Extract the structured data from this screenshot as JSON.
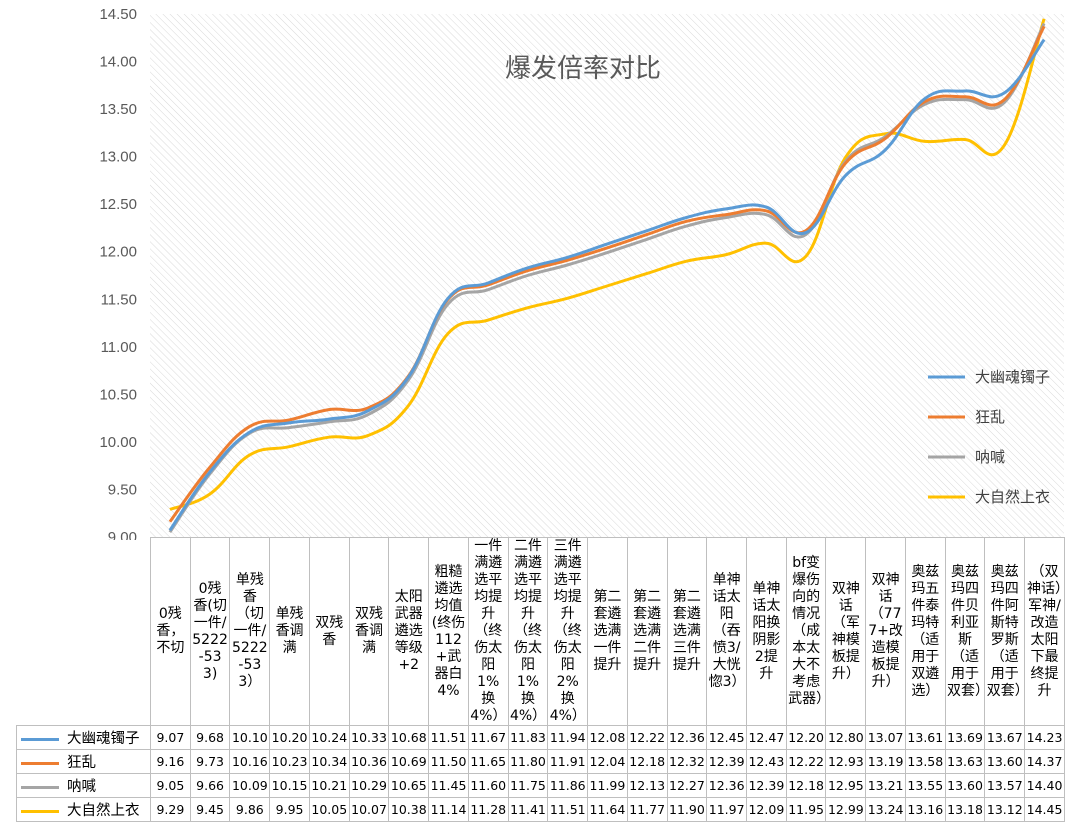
{
  "chart_data": {
    "type": "line",
    "title": "爆发倍率对比",
    "y_ticks": [
      "9.00",
      "9.50",
      "10.00",
      "10.50",
      "11.00",
      "11.50",
      "12.00",
      "12.50",
      "13.00",
      "13.50",
      "14.00",
      "14.50"
    ],
    "ylim": [
      9.0,
      14.5
    ],
    "grid": false,
    "legend_placement": "right",
    "categories": [
      "0残香，不切",
      "0残香(切一件/5222-533)",
      "单残香（切一件/5222-533）",
      "单残香调满",
      "双残香",
      "双残香调满",
      "太阳武器遴选等级+2",
      "粗糙遴选均值(终伤112+武器白4%",
      "一件满遴选平均提升（终伤太阳1%换4%）",
      "二件满遴选平均提升（终伤太阳1%换4%）",
      "三件满遴选平均提升（终伤太阳2%换4%）",
      "第二套遴选满一件提升",
      "第二套遴选满二件提升",
      "第二套遴选满三件提升",
      "单神话太阳（吞愤3/大恍惚3）",
      "单神话太阳换阴影2提升",
      "bf变爆伤向的情况（成本太大不考虑武器）",
      "双神话（军神模板提升）",
      "双神话（777+改造模板提升）",
      "奥兹玛五件泰玛特（适用于双遴选）",
      "奥兹玛四件贝利亚斯（适用于双套）",
      "奥兹玛四件阿斯特罗斯（适用于双套）",
      "（双神话）军神/改造太阳下最终提升"
    ],
    "series": [
      {
        "name": "大幽魂镯子",
        "color": "#5b9bd5",
        "values": [
          9.07,
          9.68,
          10.1,
          10.2,
          10.24,
          10.33,
          10.68,
          11.51,
          11.67,
          11.83,
          11.94,
          12.08,
          12.22,
          12.36,
          12.45,
          12.47,
          12.2,
          12.8,
          13.07,
          13.61,
          13.69,
          13.67,
          14.23
        ]
      },
      {
        "name": "狂乱",
        "color": "#ed7d31",
        "values": [
          9.16,
          9.73,
          10.16,
          10.23,
          10.34,
          10.36,
          10.69,
          11.5,
          11.65,
          11.8,
          11.91,
          12.04,
          12.18,
          12.32,
          12.39,
          12.43,
          12.22,
          12.93,
          13.19,
          13.58,
          13.63,
          13.6,
          14.37
        ]
      },
      {
        "name": "呐喊",
        "color": "#a5a5a5",
        "values": [
          9.05,
          9.66,
          10.09,
          10.15,
          10.21,
          10.29,
          10.65,
          11.45,
          11.6,
          11.75,
          11.86,
          11.99,
          12.13,
          12.27,
          12.36,
          12.39,
          12.18,
          12.95,
          13.21,
          13.55,
          13.6,
          13.57,
          14.4
        ]
      },
      {
        "name": "大自然上衣",
        "color": "#ffc000",
        "values": [
          9.29,
          9.45,
          9.86,
          9.95,
          10.05,
          10.07,
          10.38,
          11.14,
          11.28,
          11.41,
          11.51,
          11.64,
          11.77,
          11.9,
          11.97,
          12.09,
          11.95,
          12.99,
          13.24,
          13.16,
          13.18,
          13.12,
          14.45
        ]
      }
    ],
    "value_labels": [
      [
        "9.07",
        "9.68",
        "10.10",
        "10.20",
        "10.24",
        "10.33",
        "10.68",
        "11.51",
        "11.67",
        "11.83",
        "11.94",
        "12.08",
        "12.22",
        "12.36",
        "12.45",
        "12.47",
        "12.20",
        "12.80",
        "13.07",
        "13.61",
        "13.69",
        "13.67",
        "14.23"
      ],
      [
        "9.16",
        "9.73",
        "10.16",
        "10.23",
        "10.34",
        "10.36",
        "10.69",
        "11.50",
        "11.65",
        "11.80",
        "11.91",
        "12.04",
        "12.18",
        "12.32",
        "12.39",
        "12.43",
        "12.22",
        "12.93",
        "13.19",
        "13.58",
        "13.63",
        "13.60",
        "14.37"
      ],
      [
        "9.05",
        "9.66",
        "10.09",
        "10.15",
        "10.21",
        "10.29",
        "10.65",
        "11.45",
        "11.60",
        "11.75",
        "11.86",
        "11.99",
        "12.13",
        "12.27",
        "12.36",
        "12.39",
        "12.18",
        "12.95",
        "13.21",
        "13.55",
        "13.60",
        "13.57",
        "14.40"
      ],
      [
        "9.29",
        "9.45",
        "9.86",
        "9.95",
        "10.05",
        "10.07",
        "10.38",
        "11.14",
        "11.28",
        "11.41",
        "11.51",
        "11.64",
        "11.77",
        "11.90",
        "11.97",
        "12.09",
        "11.95",
        "12.99",
        "13.24",
        "13.16",
        "13.18",
        "13.12",
        "14.45"
      ]
    ]
  }
}
